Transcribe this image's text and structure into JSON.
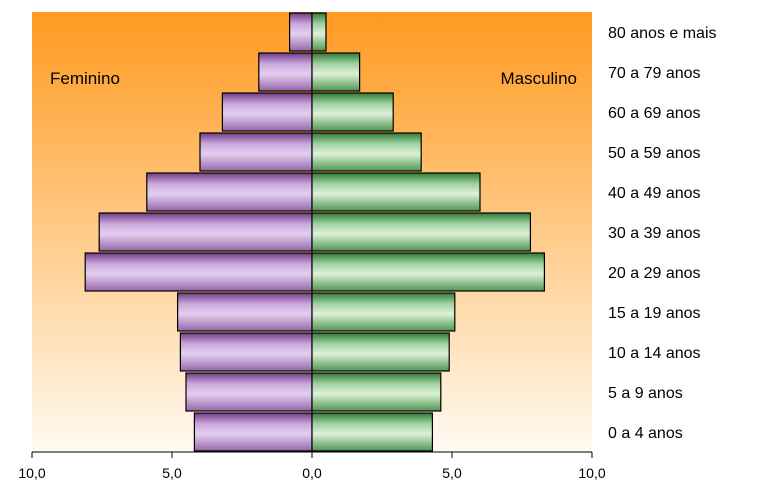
{
  "chart_data": {
    "type": "bar",
    "orientation": "horizontal-population-pyramid",
    "categories": [
      "0 a 4 anos",
      "5 a 9 anos",
      "10 a 14 anos",
      "15 a 19 anos",
      "20 a 29 anos",
      "30 a 39 anos",
      "40 a 49 anos",
      "50 a 59 anos",
      "60 a 69 anos",
      "70 a 79 anos",
      "80 anos e mais"
    ],
    "series": [
      {
        "name": "Feminino",
        "side": "left",
        "color": "#9b6ab1",
        "values": [
          4.2,
          4.5,
          4.7,
          4.8,
          8.1,
          7.6,
          5.9,
          4.0,
          3.2,
          1.9,
          0.8
        ]
      },
      {
        "name": "Masculino",
        "side": "right",
        "color": "#4e9b54",
        "values": [
          4.3,
          4.6,
          4.9,
          5.1,
          8.3,
          7.8,
          6.0,
          3.9,
          2.9,
          1.7,
          0.5
        ]
      }
    ],
    "xlim": [
      -10,
      10
    ],
    "x_ticks": [
      -10,
      -5,
      0,
      5,
      10
    ],
    "x_tick_labels": [
      "10,0",
      "5,0",
      "0,0",
      "5,0",
      "10,0"
    ],
    "xlabel": "",
    "ylabel": "",
    "grid": false,
    "background_gradient": [
      "#ff9a1f",
      "#fffaf2"
    ]
  }
}
